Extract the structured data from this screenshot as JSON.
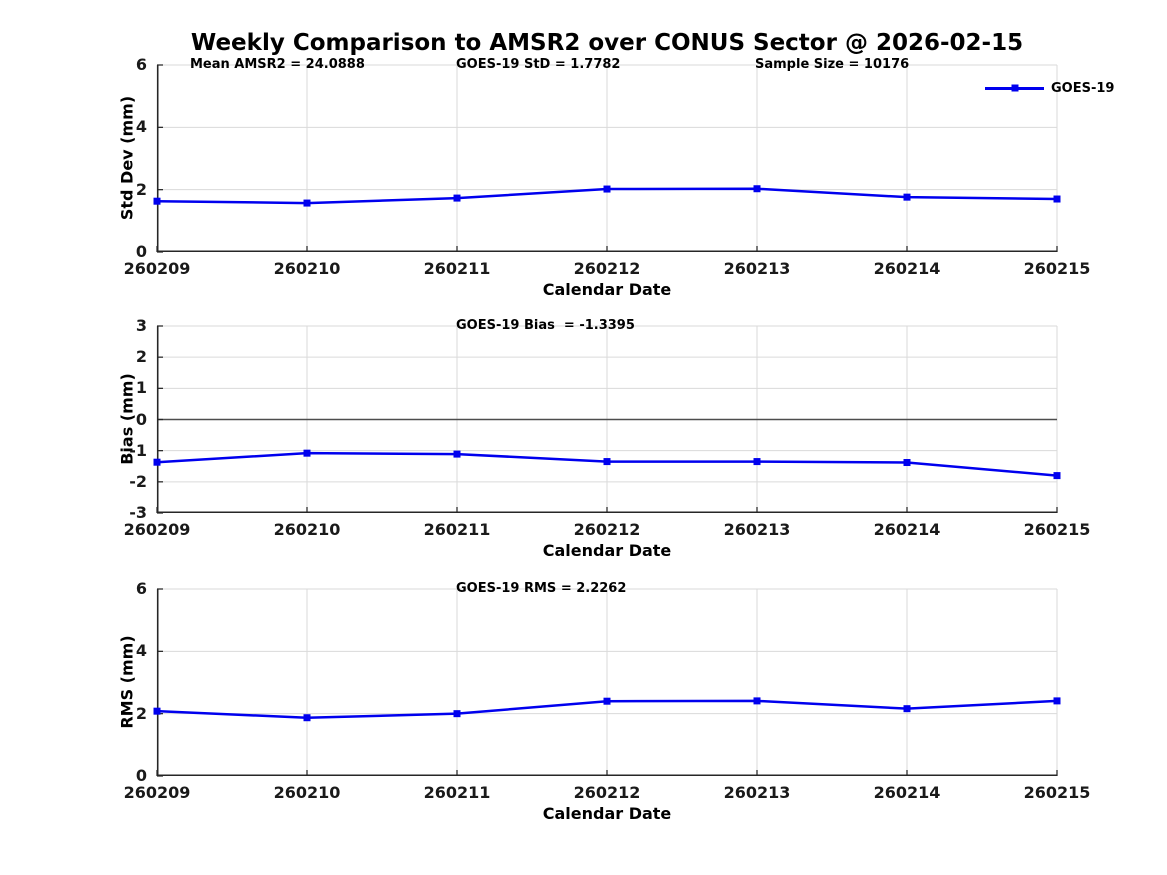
{
  "page": {
    "title": "Weekly Comparison to AMSR2 over CONUS Sector @ 2026-02-15"
  },
  "legend": {
    "series_label": "GOES-19"
  },
  "stats": {
    "mean_amsr2": 24.0888,
    "goes19_std": 1.7782,
    "sample_size": 10176,
    "goes19_bias": -1.3395,
    "goes19_rms": 2.2262
  },
  "colors": {
    "line": "#0000ee",
    "marker": "#0000ee",
    "grid": "#dadada",
    "axis": "#262626",
    "zero_line": "#4d4d4d",
    "text": "#000000",
    "background": "#ffffff"
  },
  "chart_data": [
    {
      "type": "line",
      "panel": "std_dev",
      "annotations": [
        "Mean AMSR2 = 24.0888",
        "GOES-19 StD = 1.7782",
        "Sample Size = 10176"
      ],
      "ylabel": "Std Dev (mm)",
      "xlabel": "Calendar Date",
      "categories": [
        "260209",
        "260210",
        "260211",
        "260212",
        "260213",
        "260214",
        "260215"
      ],
      "yticks": [
        0,
        2,
        4,
        6
      ],
      "ylim": [
        0,
        6
      ],
      "grid": true,
      "legend_position": "top-right",
      "series": [
        {
          "name": "GOES-19",
          "marker": "square",
          "values": [
            1.63,
            1.57,
            1.73,
            2.02,
            2.03,
            1.76,
            1.7
          ]
        }
      ]
    },
    {
      "type": "line",
      "panel": "bias",
      "annotations": [
        "GOES-19 Bias  = -1.3395"
      ],
      "ylabel": "Bias (mm)",
      "xlabel": "Calendar Date",
      "categories": [
        "260209",
        "260210",
        "260211",
        "260212",
        "260213",
        "260214",
        "260215"
      ],
      "yticks": [
        -3,
        -2,
        -1,
        0,
        1,
        2,
        3
      ],
      "ylim": [
        -3,
        3
      ],
      "grid": true,
      "zero_line": true,
      "series": [
        {
          "name": "GOES-19",
          "marker": "square",
          "values": [
            -1.37,
            -1.08,
            -1.11,
            -1.35,
            -1.35,
            -1.38,
            -1.8
          ]
        }
      ]
    },
    {
      "type": "line",
      "panel": "rms",
      "annotations": [
        "GOES-19 RMS = 2.2262"
      ],
      "ylabel": "RMS (mm)",
      "xlabel": "Calendar Date",
      "categories": [
        "260209",
        "260210",
        "260211",
        "260212",
        "260213",
        "260214",
        "260215"
      ],
      "yticks": [
        0,
        2,
        4,
        6
      ],
      "ylim": [
        0,
        6
      ],
      "grid": true,
      "series": [
        {
          "name": "GOES-19",
          "marker": "square",
          "values": [
            2.08,
            1.87,
            2.0,
            2.4,
            2.41,
            2.16,
            2.41
          ]
        }
      ]
    }
  ]
}
